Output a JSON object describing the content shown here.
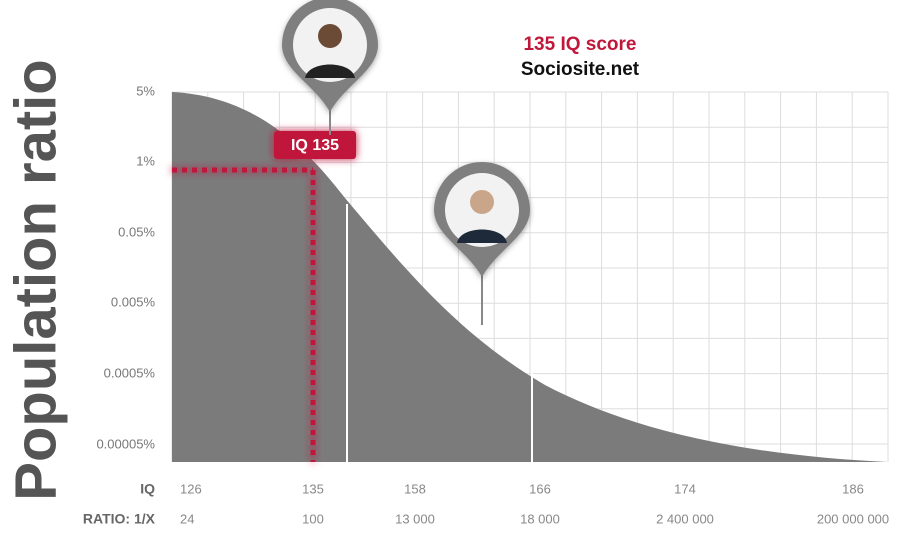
{
  "chart_data": {
    "type": "area",
    "title": "135 IQ score",
    "subtitle": "Sociosite.net",
    "y_label": "Population ratio",
    "y_categories": [
      "5%",
      "1%",
      "0.05%",
      "0.005%",
      "0.0005%",
      "0.00005%"
    ],
    "x_rows": [
      {
        "label": "IQ",
        "values": [
          126,
          135,
          158,
          166,
          174,
          186
        ]
      },
      {
        "label": "RATIO: 1/X",
        "values": [
          24,
          100,
          {
            "value": 13000,
            "label": "13 000"
          },
          {
            "value": 18000,
            "label": "18 000"
          },
          {
            "value": 2400000,
            "label": "2 400 000"
          },
          {
            "value": 200000000,
            "label": "200 000 000"
          }
        ]
      }
    ],
    "annotation": "IQ 135",
    "grid": true,
    "color": "#7b7b7b",
    "highlight_color": "#c0183a"
  }
}
